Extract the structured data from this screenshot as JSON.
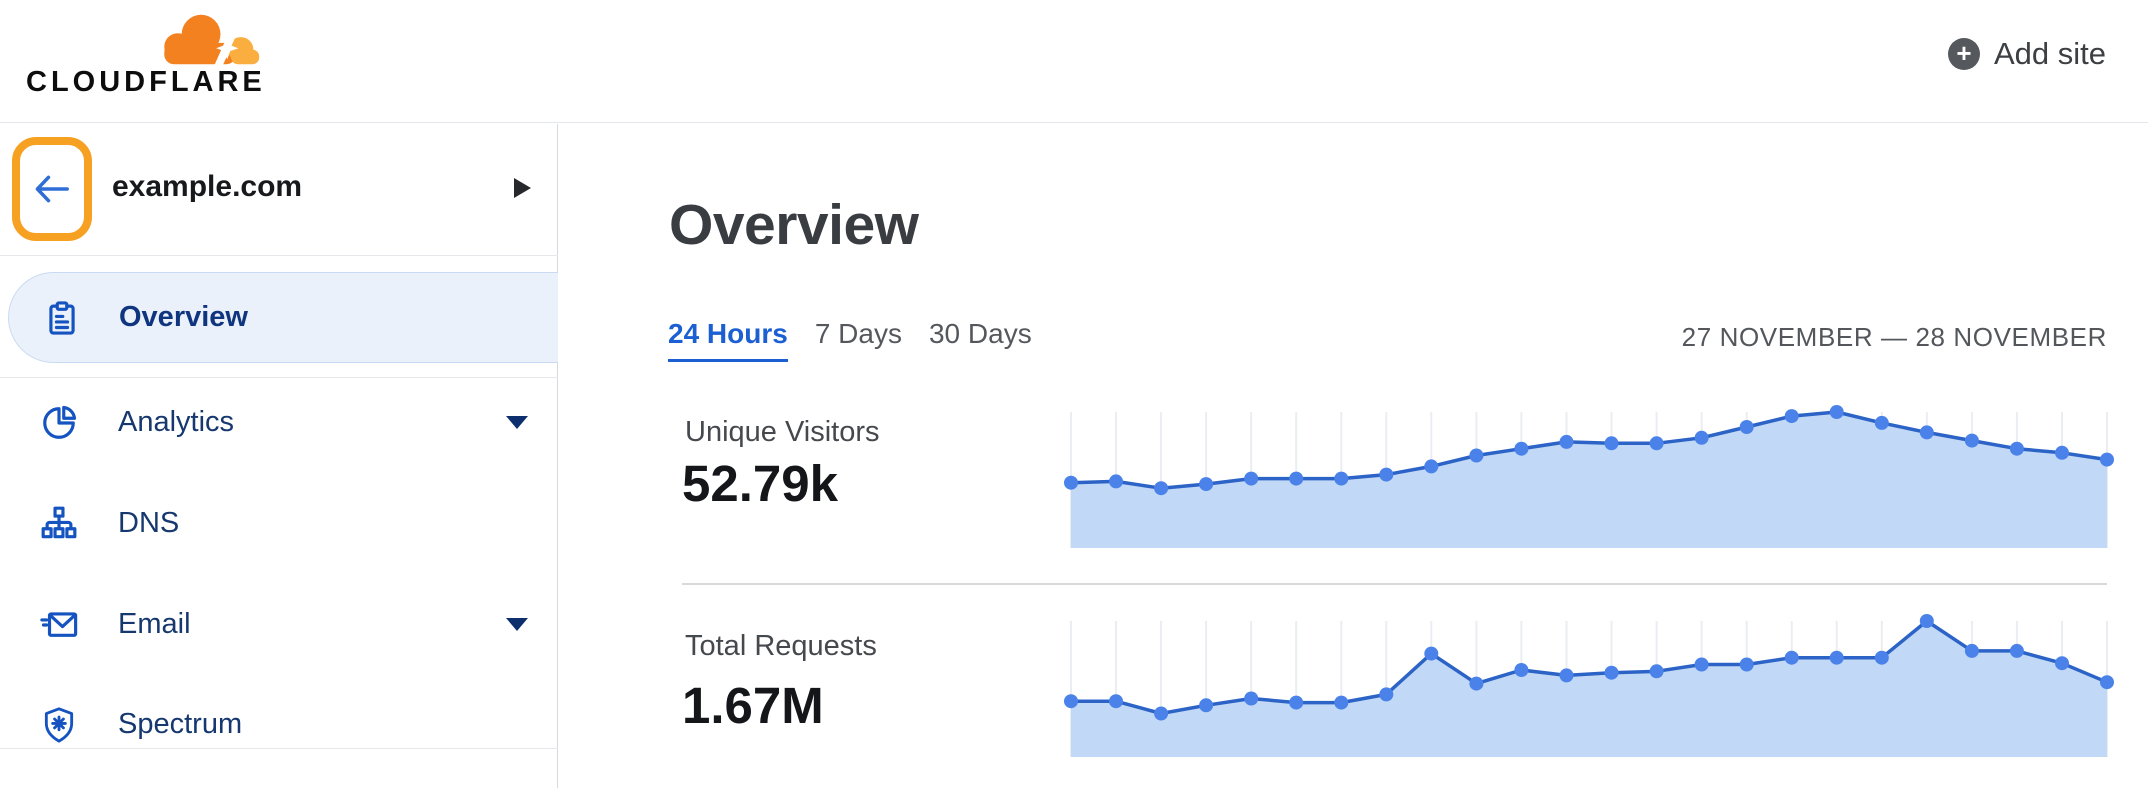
{
  "header": {
    "logo_text": "CLOUDFLARE",
    "add_site_label": "Add site"
  },
  "sidebar": {
    "site": "example.com",
    "items": [
      {
        "label": "Overview",
        "icon": "clipboard-icon",
        "selected": true,
        "has_caret": false
      },
      {
        "label": "Analytics",
        "icon": "pie-chart-icon",
        "selected": false,
        "has_caret": true
      },
      {
        "label": "DNS",
        "icon": "network-tree-icon",
        "selected": false,
        "has_caret": false
      },
      {
        "label": "Email",
        "icon": "email-icon",
        "selected": false,
        "has_caret": true
      },
      {
        "label": "Spectrum",
        "icon": "shield-icon",
        "selected": false,
        "has_caret": false
      }
    ]
  },
  "main": {
    "title": "Overview",
    "tabs": [
      {
        "label": "24 Hours",
        "active": true
      },
      {
        "label": "7 Days",
        "active": false
      },
      {
        "label": "30 Days",
        "active": false
      }
    ],
    "date_range": "27 NOVEMBER — 28 NOVEMBER",
    "stats": [
      {
        "label": "Unique Visitors",
        "value": "52.79k"
      },
      {
        "label": "Total Requests",
        "value": "1.67M"
      }
    ]
  },
  "chart_data": [
    {
      "type": "area",
      "title": "Unique Visitors",
      "total_label": "52.79k",
      "x_range": "27 November — 28 November, 24 hourly points",
      "xlabel": "",
      "ylabel": "",
      "grid": true,
      "note": "sparkline without y-axis labels; values are relative heights 0-100",
      "values_relative": [
        48,
        49,
        44,
        47,
        51,
        51,
        51,
        54,
        60,
        68,
        73,
        78,
        77,
        77,
        81,
        89,
        97,
        100,
        92,
        85,
        79,
        73,
        70,
        65
      ]
    },
    {
      "type": "area",
      "title": "Total Requests",
      "total_label": "1.67M",
      "x_range": "27 November — 28 November, 24 hourly points",
      "xlabel": "",
      "ylabel": "",
      "grid": true,
      "note": "sparkline without y-axis labels; values are relative heights 0-100",
      "values_relative": [
        41,
        41,
        32,
        38,
        43,
        40,
        40,
        46,
        76,
        54,
        64,
        60,
        62,
        63,
        68,
        68,
        73,
        73,
        73,
        100,
        78,
        78,
        69,
        55
      ]
    }
  ],
  "colors": {
    "brand_orange": "#F48120",
    "brand_orange_light": "#FAAE40",
    "annotation_orange": "#F6A121",
    "link_blue": "#1B5FD2",
    "nav_text_blue": "#16386F",
    "nav_icon_blue": "#1553C0",
    "selected_item_bg": "#EBF1FB",
    "chart_fill": "#C1D8F6",
    "chart_line": "#2C63C6",
    "chart_dot": "#4B82E9",
    "chart_grid": "#EAEDF2"
  }
}
